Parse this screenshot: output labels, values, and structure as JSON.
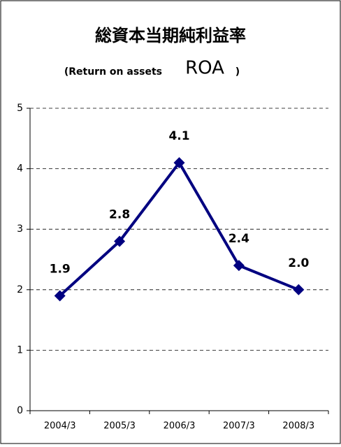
{
  "chart_data": {
    "type": "line",
    "title": "総資本当期純利益率",
    "subtitle": "(Return on assets",
    "subtitle_emphasis": "ROA",
    "subtitle_close": ")",
    "categories": [
      "2004/3",
      "2005/3",
      "2006/3",
      "2007/3",
      "2008/3"
    ],
    "series": [
      {
        "name": "ROA",
        "color": "#000080",
        "values": [
          1.9,
          2.8,
          4.1,
          2.4,
          2.0
        ],
        "value_labels": [
          "1.9",
          "2.8",
          "4.1",
          "2.4",
          "2.0"
        ]
      }
    ],
    "ylim": [
      0,
      5
    ],
    "yticks": [
      0,
      1,
      2,
      3,
      4,
      5
    ],
    "grid": true
  }
}
